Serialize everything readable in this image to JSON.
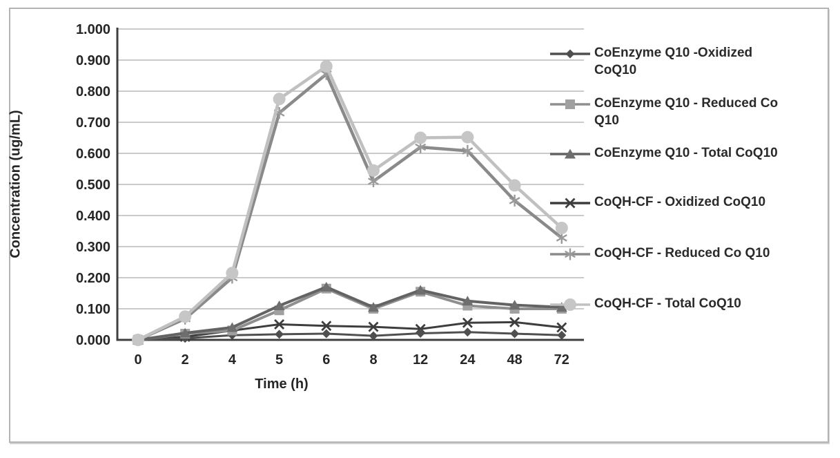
{
  "chart_data": {
    "type": "line",
    "title": "",
    "xlabel": "Time (h)",
    "ylabel": "Concentration (ug/mL)",
    "ylim": [
      0,
      1.0
    ],
    "ytick_labels": [
      "1.000",
      "0.900",
      "0.800",
      "0.700",
      "0.600",
      "0.500",
      "0.400",
      "0.300",
      "0.200",
      "0.100",
      "0.000"
    ],
    "categories": [
      "0",
      "2",
      "4",
      "5",
      "6",
      "8",
      "12",
      "24",
      "48",
      "72"
    ],
    "grid": "horizontal",
    "legend_position": "right",
    "axis_color": "#3f3f3f",
    "gridline_color": "#ababab",
    "series": [
      {
        "name": "CoEnzyme Q10 -Oxidized CoQ10",
        "name_lines": [
          "CoEnzyme Q10 -Oxidized",
          "CoQ10"
        ],
        "marker": "diamond",
        "line_color": "#4f4f4f",
        "marker_color": "#4f4f4f",
        "line_width": 3,
        "values": [
          0.0,
          0.005,
          0.015,
          0.018,
          0.02,
          0.013,
          0.021,
          0.025,
          0.02,
          0.015
        ]
      },
      {
        "name": "CoEnzyme Q10 - Reduced Co Q10",
        "name_lines": [
          "CoEnzyme Q10 - Reduced Co",
          "Q10"
        ],
        "marker": "square",
        "line_color": "#8f8f8f",
        "marker_color": "#a0a0a0",
        "line_width": 4,
        "values": [
          0.0,
          0.02,
          0.03,
          0.095,
          0.165,
          0.1,
          0.155,
          0.11,
          0.1,
          0.1
        ]
      },
      {
        "name": "CoEnzyme Q10 - Total CoQ10",
        "name_lines": [
          "CoEnzyme Q10 - Total CoQ10"
        ],
        "marker": "triangle",
        "line_color": "#636363",
        "marker_color": "#6e6e6e",
        "line_width": 4,
        "values": [
          0.0,
          0.022,
          0.04,
          0.11,
          0.17,
          0.105,
          0.16,
          0.125,
          0.112,
          0.105
        ]
      },
      {
        "name": "CoQH-CF - Oxidized CoQ10",
        "name_lines": [
          "CoQH-CF - Oxidized CoQ10"
        ],
        "marker": "x",
        "line_color": "#3d3d3d",
        "marker_color": "#3d3d3d",
        "line_width": 3,
        "values": [
          0.0,
          0.01,
          0.03,
          0.05,
          0.045,
          0.042,
          0.035,
          0.055,
          0.057,
          0.04
        ]
      },
      {
        "name": "CoQH-CF - Reduced Co Q10",
        "name_lines": [
          "CoQH-CF - Reduced Co Q10"
        ],
        "marker": "star",
        "line_color": "#8a8a8a",
        "marker_color": "#9a9a9a",
        "line_width": 4.5,
        "values": [
          0.0,
          0.068,
          0.2,
          0.73,
          0.855,
          0.51,
          0.62,
          0.608,
          0.448,
          0.328
        ]
      },
      {
        "name": "CoQH-CF - Total CoQ10",
        "name_lines": [
          "CoQH-CF - Total CoQ10"
        ],
        "marker": "circle",
        "line_color": "#c0c0c0",
        "marker_color": "#c6c6c6",
        "line_width": 4.5,
        "values": [
          0.0,
          0.075,
          0.215,
          0.775,
          0.88,
          0.545,
          0.65,
          0.652,
          0.497,
          0.36
        ]
      }
    ]
  }
}
